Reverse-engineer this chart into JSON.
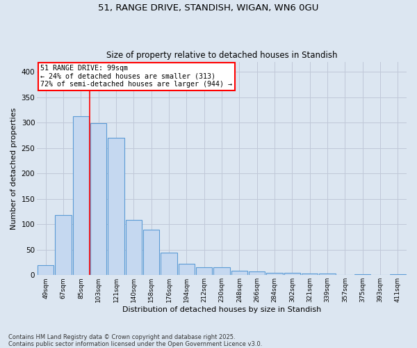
{
  "title": "51, RANGE DRIVE, STANDISH, WIGAN, WN6 0GU",
  "subtitle": "Size of property relative to detached houses in Standish",
  "xlabel": "Distribution of detached houses by size in Standish",
  "ylabel": "Number of detached properties",
  "footer": "Contains HM Land Registry data © Crown copyright and database right 2025.\nContains public sector information licensed under the Open Government Licence v3.0.",
  "categories": [
    "49sqm",
    "67sqm",
    "85sqm",
    "103sqm",
    "121sqm",
    "140sqm",
    "158sqm",
    "176sqm",
    "194sqm",
    "212sqm",
    "230sqm",
    "248sqm",
    "266sqm",
    "284sqm",
    "302sqm",
    "321sqm",
    "339sqm",
    "357sqm",
    "375sqm",
    "393sqm",
    "411sqm"
  ],
  "values": [
    20,
    118,
    313,
    299,
    270,
    108,
    90,
    44,
    22,
    15,
    15,
    8,
    7,
    4,
    5,
    3,
    3,
    1,
    2,
    1,
    2
  ],
  "bar_color": "#c5d8f0",
  "bar_edge_color": "#5b9bd5",
  "grid_color": "#c0c8d8",
  "background_color": "#dce6f1",
  "annotation_text": "51 RANGE DRIVE: 99sqm\n← 24% of detached houses are smaller (313)\n72% of semi-detached houses are larger (944) →",
  "vline_x": 2.5,
  "vline_color": "red",
  "ylim": [
    0,
    420
  ],
  "yticks": [
    0,
    50,
    100,
    150,
    200,
    250,
    300,
    350,
    400
  ]
}
